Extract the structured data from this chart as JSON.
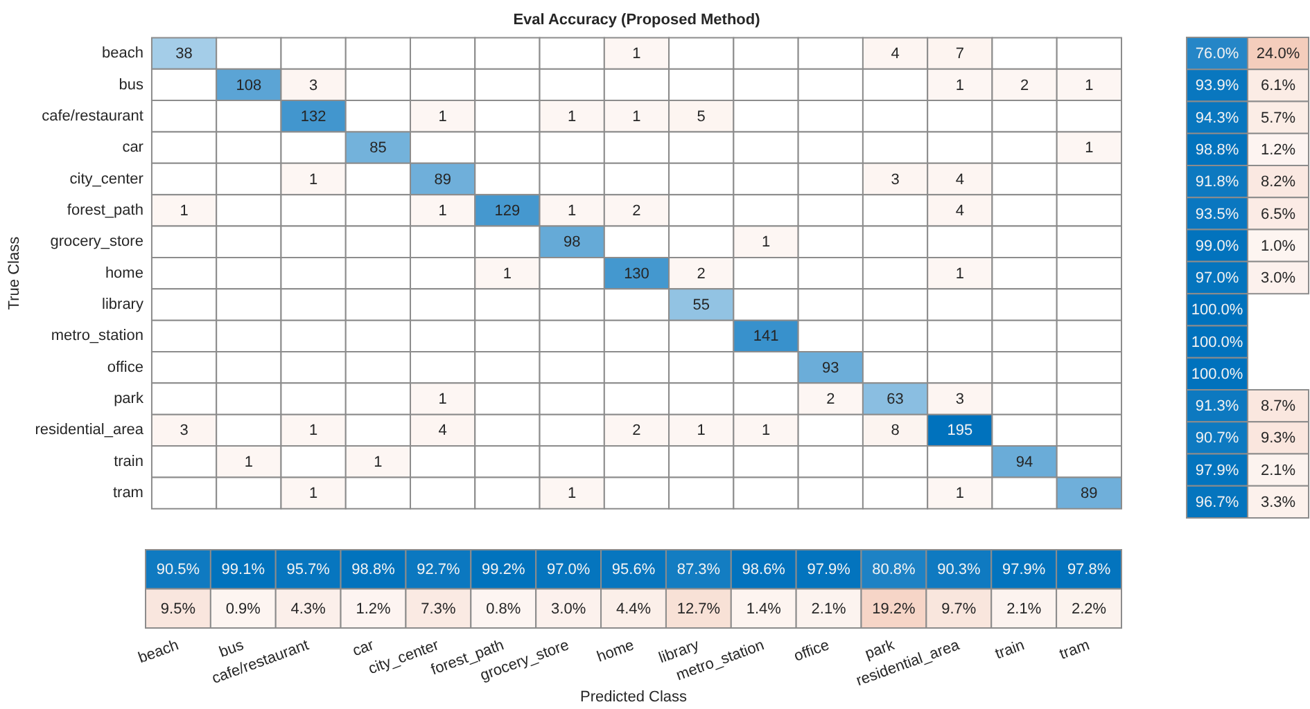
{
  "chart_data": [
    {
      "type": "heatmap",
      "title": "Eval Accuracy (Proposed Method)",
      "ylabel": "True Class",
      "tick_labels": "y",
      "data_labels": true,
      "categories": [
        null,
        null,
        null,
        null,
        null,
        null,
        null,
        null,
        null,
        null,
        null,
        null,
        null,
        null,
        null
      ],
      "y_categories": [
        "beach",
        "bus",
        "cafe/restaurant",
        "car",
        "city_center",
        "forest_path",
        "grocery_store",
        "home",
        "library",
        "metro_station",
        "office",
        "park",
        "residential_area",
        "train",
        "tram"
      ],
      "cells": [
        [
          38,
          null,
          null,
          null,
          null,
          null,
          null,
          1,
          null,
          null,
          null,
          4,
          7,
          null,
          null
        ],
        [
          null,
          108,
          3,
          null,
          null,
          null,
          null,
          null,
          null,
          null,
          null,
          null,
          1,
          2,
          1
        ],
        [
          null,
          null,
          132,
          null,
          1,
          null,
          1,
          1,
          5,
          null,
          null,
          null,
          null,
          null,
          null
        ],
        [
          null,
          null,
          null,
          85,
          null,
          null,
          null,
          null,
          null,
          null,
          null,
          null,
          null,
          null,
          1
        ],
        [
          null,
          null,
          1,
          null,
          89,
          null,
          null,
          null,
          null,
          null,
          null,
          3,
          4,
          null,
          null
        ],
        [
          1,
          null,
          null,
          null,
          1,
          129,
          1,
          2,
          null,
          null,
          null,
          null,
          4,
          null,
          null
        ],
        [
          null,
          null,
          null,
          null,
          null,
          null,
          98,
          null,
          null,
          1,
          null,
          null,
          null,
          null,
          null
        ],
        [
          null,
          null,
          null,
          null,
          null,
          1,
          null,
          130,
          2,
          null,
          null,
          null,
          1,
          null,
          null
        ],
        [
          null,
          null,
          null,
          null,
          null,
          null,
          null,
          null,
          55,
          null,
          null,
          null,
          null,
          null,
          null
        ],
        [
          null,
          null,
          null,
          null,
          null,
          null,
          null,
          null,
          null,
          141,
          null,
          null,
          null,
          null,
          null
        ],
        [
          null,
          null,
          null,
          null,
          null,
          null,
          null,
          null,
          null,
          null,
          93,
          null,
          null,
          null,
          null
        ],
        [
          null,
          null,
          null,
          null,
          1,
          null,
          null,
          null,
          null,
          null,
          2,
          63,
          3,
          null,
          null
        ],
        [
          3,
          null,
          1,
          null,
          4,
          null,
          null,
          2,
          1,
          1,
          null,
          8,
          195,
          null,
          null
        ],
        [
          null,
          1,
          null,
          1,
          null,
          null,
          null,
          null,
          null,
          null,
          null,
          null,
          null,
          94,
          null
        ],
        [
          null,
          null,
          1,
          null,
          null,
          null,
          1,
          null,
          null,
          null,
          null,
          null,
          1,
          null,
          89
        ]
      ]
    },
    {
      "type": "heatmap",
      "tick_labels": false,
      "categories": [
        null,
        null
      ],
      "y_categories": [
        null,
        null,
        null,
        null,
        null,
        null,
        null,
        null,
        null,
        null,
        null,
        null,
        null,
        null,
        null
      ],
      "cells": [
        [
          76.0,
          24.0
        ],
        [
          93.9,
          6.1
        ],
        [
          94.3,
          5.7
        ],
        [
          98.8,
          1.2
        ],
        [
          91.8,
          8.2
        ],
        [
          93.5,
          6.5
        ],
        [
          99.0,
          1.0
        ],
        [
          97.0,
          3.0
        ],
        [
          100.0,
          null
        ],
        [
          100.0,
          null
        ],
        [
          100.0,
          null
        ],
        [
          91.3,
          8.7
        ],
        [
          90.7,
          9.3
        ],
        [
          97.9,
          2.1
        ],
        [
          96.7,
          3.3
        ]
      ],
      "cell_labels": [
        [
          "76.0%",
          "24.0%"
        ],
        [
          "93.9%",
          "6.1%"
        ],
        [
          "94.3%",
          "5.7%"
        ],
        [
          "98.8%",
          "1.2%"
        ],
        [
          "91.8%",
          "8.2%"
        ],
        [
          "93.5%",
          "6.5%"
        ],
        [
          "99.0%",
          "1.0%"
        ],
        [
          "97.0%",
          "3.0%"
        ],
        [
          "100.0%",
          null
        ],
        [
          "100.0%",
          null
        ],
        [
          "100.0%",
          null
        ],
        [
          "91.3%",
          "8.7%"
        ],
        [
          "90.7%",
          "9.3%"
        ],
        [
          "97.9%",
          "2.1%"
        ],
        [
          "96.7%",
          "3.3%"
        ]
      ]
    },
    {
      "type": "heatmap",
      "xlabel": "Predicted Class",
      "tick_labels": "x",
      "categories": [
        "beach",
        "bus",
        "cafe/restaurant",
        "car",
        "city_center",
        "forest_path",
        "grocery_store",
        "home",
        "library",
        "metro_station",
        "office",
        "park",
        "residential_area",
        "train",
        "tram"
      ],
      "y_categories": [
        null,
        null
      ],
      "cells": [
        [
          90.5,
          99.1,
          95.7,
          98.8,
          92.7,
          99.2,
          97.0,
          95.6,
          87.3,
          98.6,
          97.9,
          80.8,
          90.3,
          97.9,
          97.8
        ],
        [
          9.5,
          0.9,
          4.3,
          1.2,
          7.3,
          0.8,
          3.0,
          4.4,
          12.7,
          1.4,
          2.1,
          19.2,
          9.7,
          2.1,
          2.2
        ]
      ],
      "cell_labels": [
        [
          "90.5%",
          "99.1%",
          "95.7%",
          "98.8%",
          "92.7%",
          "99.2%",
          "97.0%",
          "95.6%",
          "87.3%",
          "98.6%",
          "97.9%",
          "80.8%",
          "90.3%",
          "97.9%",
          "97.8%"
        ],
        [
          "9.5%",
          "0.9%",
          "4.3%",
          "1.2%",
          "7.3%",
          "0.8%",
          "3.0%",
          "4.4%",
          "12.7%",
          "1.4%",
          "2.1%",
          "19.2%",
          "9.7%",
          "2.1%",
          "2.2%"
        ]
      ]
    }
  ]
}
